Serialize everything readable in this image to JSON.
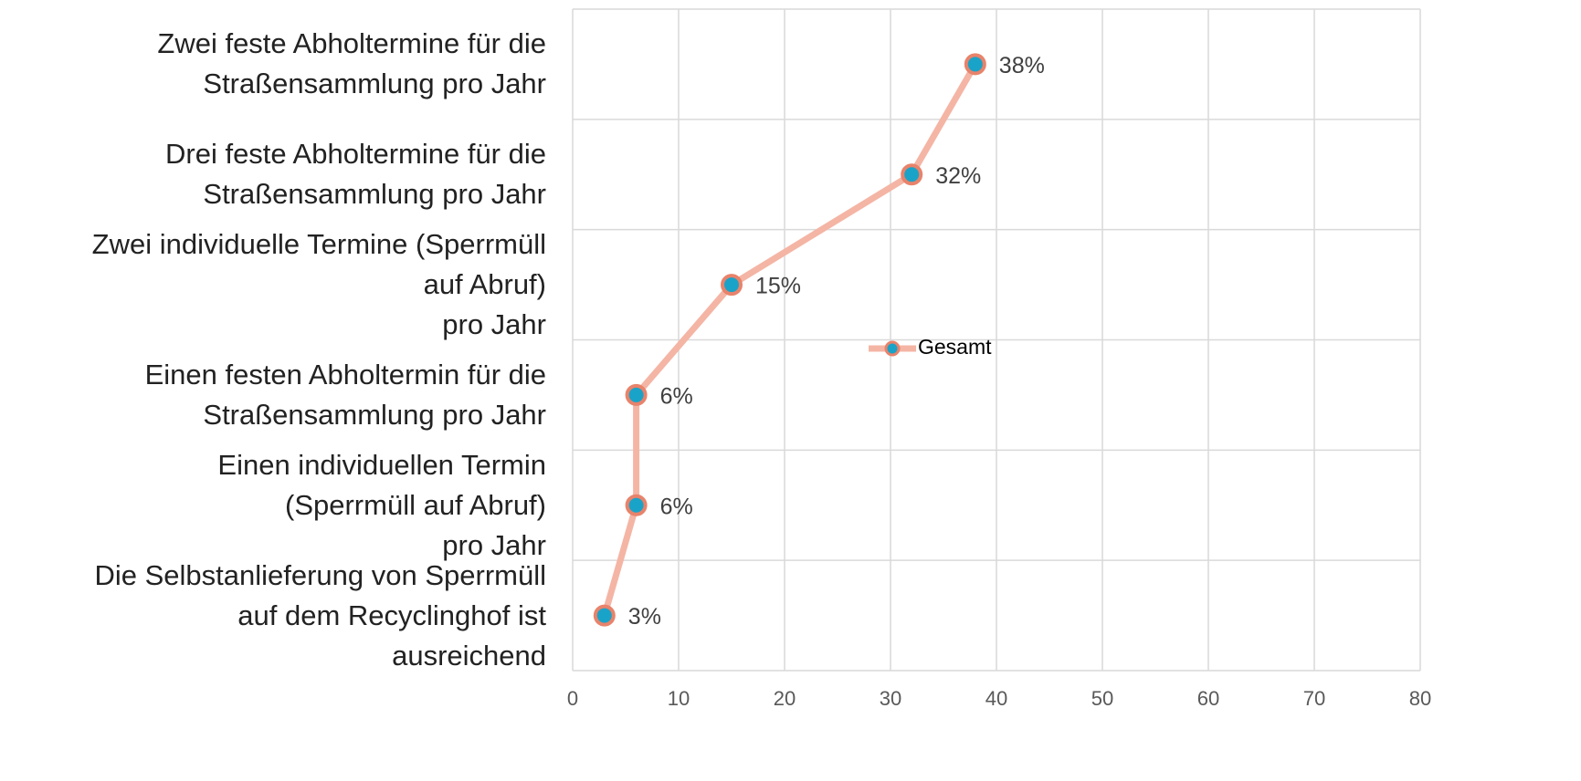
{
  "chart_data": {
    "type": "line",
    "orientation": "horizontal",
    "categories": [
      "Zwei feste Abholtermine für die\nStraßensammlung pro Jahr",
      "Drei feste Abholtermine für die\nStraßensammlung pro Jahr",
      "Zwei individuelle Termine (Sperrmüll\nauf Abruf)\npro Jahr",
      "Einen festen Abholtermin für die\nStraßensammlung pro Jahr",
      "Einen individuellen Termin\n(Sperrmüll auf Abruf)\npro Jahr",
      "Die Selbstanlieferung von Sperrmüll\nauf dem Recyclinghof ist\nausreichend"
    ],
    "series": [
      {
        "name": "Gesamt",
        "color": "#f4b5a5",
        "marker_color": "#1aa3c8",
        "marker_edge": "#e8836b",
        "values": [
          38,
          32,
          15,
          6,
          6,
          3
        ],
        "value_labels": [
          "38%",
          "32%",
          "15%",
          "6%",
          "6%",
          "3%"
        ]
      }
    ],
    "xlim": [
      0,
      80
    ],
    "xticks": [
      0,
      10,
      20,
      30,
      40,
      50,
      60,
      70,
      80
    ],
    "grid": true,
    "legend": "center"
  }
}
